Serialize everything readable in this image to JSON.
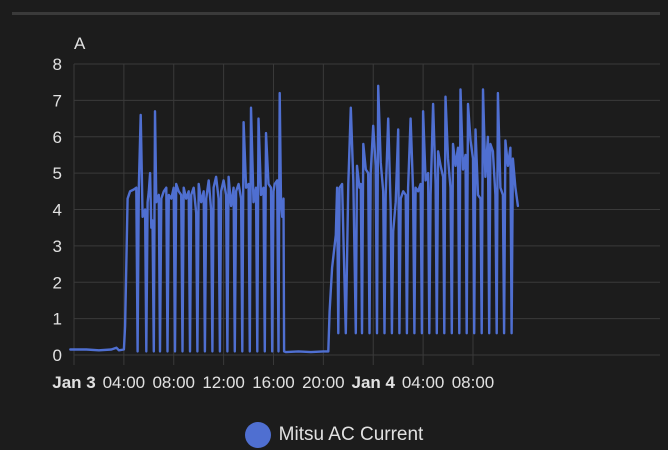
{
  "chart_data": {
    "type": "line",
    "title": "",
    "ylabel": "A",
    "xlabel": "",
    "ylim": [
      0,
      8
    ],
    "y_ticks": [
      "0",
      "1",
      "2",
      "3",
      "4",
      "5",
      "6",
      "7",
      "8"
    ],
    "xlim_hours": [
      0,
      47
    ],
    "x_ticks": [
      {
        "label": "Jan 3",
        "hour": 0,
        "bold": true
      },
      {
        "label": "04:00",
        "hour": 4,
        "bold": false
      },
      {
        "label": "08:00",
        "hour": 8,
        "bold": false
      },
      {
        "label": "12:00",
        "hour": 12,
        "bold": false
      },
      {
        "label": "16:00",
        "hour": 16,
        "bold": false
      },
      {
        "label": "20:00",
        "hour": 20,
        "bold": false
      },
      {
        "label": "Jan 4",
        "hour": 24,
        "bold": true
      },
      {
        "label": "04:00",
        "hour": 28,
        "bold": false
      },
      {
        "label": "08:00",
        "hour": 32,
        "bold": false
      }
    ],
    "grid": true,
    "legend_position": "bottom-center",
    "series": [
      {
        "name": "Mitsu AC Current",
        "color": "#4f6fd1",
        "points": [
          [
            -0.3,
            0.15
          ],
          [
            1.0,
            0.15
          ],
          [
            2.0,
            0.13
          ],
          [
            3.0,
            0.15
          ],
          [
            3.4,
            0.2
          ],
          [
            3.6,
            0.13
          ],
          [
            4.0,
            0.15
          ],
          [
            4.1,
            0.8
          ],
          [
            4.2,
            2.6
          ],
          [
            4.3,
            4.3
          ],
          [
            4.5,
            4.5
          ],
          [
            4.8,
            4.55
          ],
          [
            5.0,
            4.6
          ],
          [
            5.1,
            0.1
          ],
          [
            5.2,
            4.6
          ],
          [
            5.35,
            6.6
          ],
          [
            5.5,
            3.8
          ],
          [
            5.7,
            4.0
          ],
          [
            5.8,
            0.1
          ],
          [
            5.9,
            4.2
          ],
          [
            6.0,
            4.5
          ],
          [
            6.1,
            5.0
          ],
          [
            6.2,
            3.5
          ],
          [
            6.3,
            3.7
          ],
          [
            6.4,
            0.1
          ],
          [
            6.5,
            6.7
          ],
          [
            6.6,
            4.2
          ],
          [
            6.8,
            4.4
          ],
          [
            6.9,
            0.1
          ],
          [
            7.0,
            4.3
          ],
          [
            7.2,
            4.5
          ],
          [
            7.4,
            4.6
          ],
          [
            7.5,
            0.1
          ],
          [
            7.6,
            4.4
          ],
          [
            7.8,
            4.3
          ],
          [
            8.0,
            4.6
          ],
          [
            8.1,
            0.1
          ],
          [
            8.2,
            4.7
          ],
          [
            8.4,
            4.5
          ],
          [
            8.6,
            4.4
          ],
          [
            8.7,
            0.1
          ],
          [
            8.8,
            4.6
          ],
          [
            9.0,
            4.3
          ],
          [
            9.2,
            4.5
          ],
          [
            9.3,
            0.1
          ],
          [
            9.4,
            4.4
          ],
          [
            9.6,
            4.6
          ],
          [
            9.8,
            3.9
          ],
          [
            9.9,
            0.1
          ],
          [
            10.0,
            4.7
          ],
          [
            10.2,
            4.2
          ],
          [
            10.4,
            4.5
          ],
          [
            10.5,
            0.1
          ],
          [
            10.6,
            4.3
          ],
          [
            10.8,
            4.8
          ],
          [
            11.0,
            4.0
          ],
          [
            11.1,
            0.1
          ],
          [
            11.2,
            4.6
          ],
          [
            11.4,
            4.9
          ],
          [
            11.6,
            4.3
          ],
          [
            11.7,
            0.1
          ],
          [
            11.8,
            4.5
          ],
          [
            12.0,
            4.8
          ],
          [
            12.2,
            4.4
          ],
          [
            12.3,
            0.1
          ],
          [
            12.4,
            4.9
          ],
          [
            12.6,
            4.1
          ],
          [
            12.8,
            4.6
          ],
          [
            12.9,
            0.1
          ],
          [
            13.0,
            4.5
          ],
          [
            13.2,
            4.7
          ],
          [
            13.4,
            4.3
          ],
          [
            13.5,
            0.1
          ],
          [
            13.6,
            6.4
          ],
          [
            13.8,
            4.6
          ],
          [
            14.0,
            4.7
          ],
          [
            14.1,
            0.1
          ],
          [
            14.2,
            6.8
          ],
          [
            14.4,
            4.2
          ],
          [
            14.6,
            4.6
          ],
          [
            14.7,
            0.1
          ],
          [
            14.8,
            6.5
          ],
          [
            15.0,
            4.4
          ],
          [
            15.2,
            4.6
          ],
          [
            15.3,
            0.1
          ],
          [
            15.4,
            6.1
          ],
          [
            15.6,
            4.7
          ],
          [
            15.8,
            4.6
          ],
          [
            15.9,
            0.1
          ],
          [
            16.0,
            4.5
          ],
          [
            16.1,
            4.7
          ],
          [
            16.3,
            4.8
          ],
          [
            16.4,
            0.1
          ],
          [
            16.5,
            7.2
          ],
          [
            16.6,
            4.2
          ],
          [
            16.7,
            3.8
          ],
          [
            16.8,
            4.3
          ],
          [
            16.85,
            0.1
          ],
          [
            17.0,
            0.08
          ],
          [
            18.0,
            0.1
          ],
          [
            19.0,
            0.08
          ],
          [
            20.0,
            0.1
          ],
          [
            20.4,
            0.1
          ],
          [
            20.5,
            1.2
          ],
          [
            20.7,
            2.4
          ],
          [
            21.0,
            3.3
          ],
          [
            21.1,
            4.6
          ],
          [
            21.2,
            0.6
          ],
          [
            21.3,
            4.6
          ],
          [
            21.5,
            4.7
          ],
          [
            21.8,
            0.6
          ],
          [
            22.0,
            4.7
          ],
          [
            22.2,
            6.8
          ],
          [
            22.4,
            4.8
          ],
          [
            22.6,
            0.6
          ],
          [
            22.7,
            5.2
          ],
          [
            22.9,
            4.6
          ],
          [
            23.0,
            4.7
          ],
          [
            23.1,
            0.6
          ],
          [
            23.2,
            5.8
          ],
          [
            23.4,
            5.1
          ],
          [
            23.6,
            5.0
          ],
          [
            23.7,
            0.6
          ],
          [
            23.8,
            5.0
          ],
          [
            24.0,
            6.3
          ],
          [
            24.2,
            5.2
          ],
          [
            24.3,
            0.6
          ],
          [
            24.4,
            7.4
          ],
          [
            24.6,
            5.3
          ],
          [
            24.8,
            4.5
          ],
          [
            24.9,
            0.6
          ],
          [
            25.0,
            4.4
          ],
          [
            25.2,
            6.5
          ],
          [
            25.4,
            4.0
          ],
          [
            25.5,
            0.6
          ],
          [
            25.6,
            3.4
          ],
          [
            25.8,
            4.2
          ],
          [
            26.0,
            6.2
          ],
          [
            26.1,
            0.6
          ],
          [
            26.2,
            4.3
          ],
          [
            26.4,
            4.5
          ],
          [
            26.6,
            4.4
          ],
          [
            26.7,
            0.6
          ],
          [
            26.8,
            4.6
          ],
          [
            27.0,
            6.5
          ],
          [
            27.2,
            4.5
          ],
          [
            27.3,
            0.6
          ],
          [
            27.4,
            4.6
          ],
          [
            27.6,
            4.5
          ],
          [
            27.8,
            4.7
          ],
          [
            27.9,
            0.6
          ],
          [
            28.0,
            6.7
          ],
          [
            28.2,
            4.8
          ],
          [
            28.4,
            5.0
          ],
          [
            28.5,
            0.6
          ],
          [
            28.6,
            4.4
          ],
          [
            28.8,
            6.9
          ],
          [
            29.0,
            4.7
          ],
          [
            29.1,
            0.6
          ],
          [
            29.2,
            5.6
          ],
          [
            29.4,
            5.2
          ],
          [
            29.6,
            4.9
          ],
          [
            29.7,
            0.6
          ],
          [
            29.8,
            7.1
          ],
          [
            30.0,
            5.4
          ],
          [
            30.2,
            4.6
          ],
          [
            30.3,
            0.6
          ],
          [
            30.4,
            5.8
          ],
          [
            30.6,
            5.2
          ],
          [
            30.8,
            5.7
          ],
          [
            30.9,
            0.6
          ],
          [
            31.0,
            7.3
          ],
          [
            31.2,
            5.1
          ],
          [
            31.4,
            5.5
          ],
          [
            31.5,
            0.6
          ],
          [
            31.6,
            6.9
          ],
          [
            31.8,
            5.9
          ],
          [
            32.0,
            5.4
          ],
          [
            32.1,
            0.6
          ],
          [
            32.2,
            6.2
          ],
          [
            32.4,
            4.4
          ],
          [
            32.6,
            4.3
          ],
          [
            32.7,
            0.6
          ],
          [
            32.8,
            7.3
          ],
          [
            33.0,
            4.9
          ],
          [
            33.2,
            6.0
          ],
          [
            33.3,
            0.6
          ],
          [
            33.4,
            5.8
          ],
          [
            33.6,
            5.6
          ],
          [
            33.8,
            4.4
          ],
          [
            33.9,
            0.6
          ],
          [
            34.0,
            7.2
          ],
          [
            34.2,
            4.6
          ],
          [
            34.4,
            4.4
          ],
          [
            34.5,
            0.6
          ],
          [
            34.6,
            5.9
          ],
          [
            34.8,
            5.2
          ],
          [
            35.0,
            5.7
          ],
          [
            35.1,
            0.6
          ],
          [
            35.2,
            5.4
          ],
          [
            35.4,
            4.6
          ],
          [
            35.6,
            4.1
          ]
        ]
      }
    ]
  },
  "legend": {
    "items": [
      {
        "label": "Mitsu AC Current",
        "color": "#4f6fd1"
      }
    ]
  }
}
